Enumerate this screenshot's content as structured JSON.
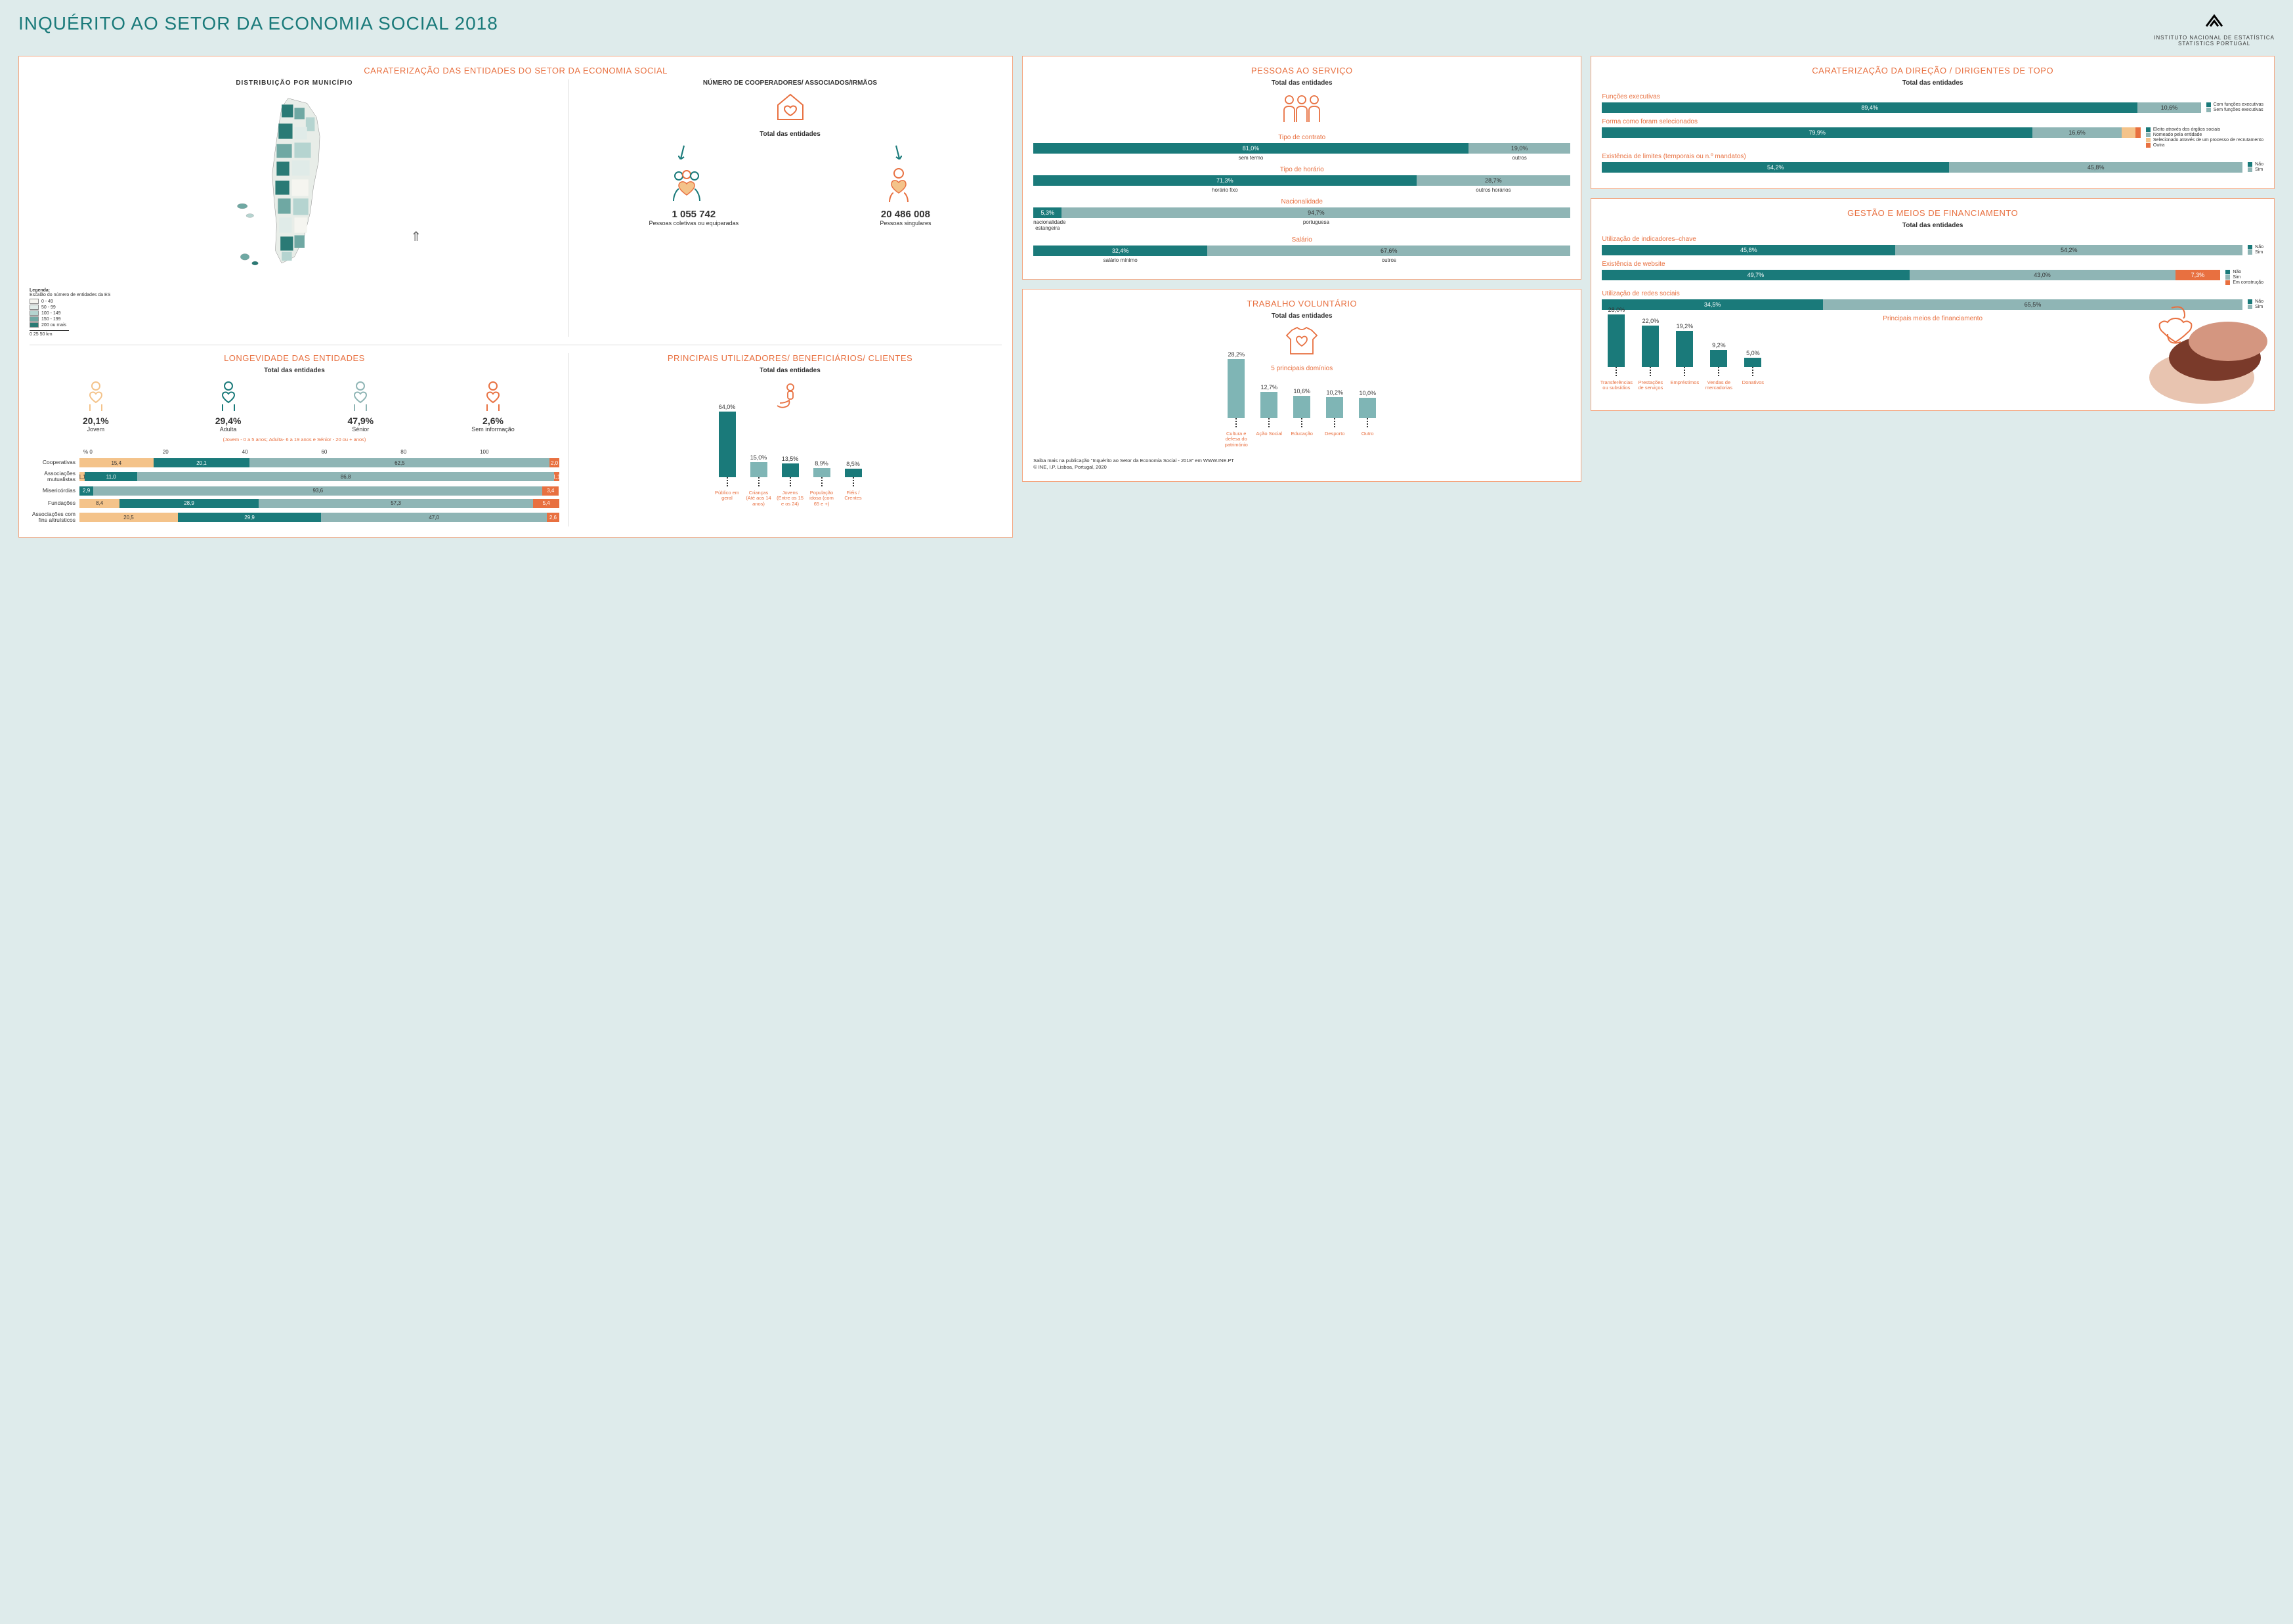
{
  "header": {
    "title": "INQUÉRITO AO SETOR DA ECONOMIA SOCIAL 2018",
    "org_line1": "INSTITUTO NACIONAL DE ESTATÍSTICA",
    "org_line2": "STATISTICS PORTUGAL"
  },
  "char": {
    "title": "CARATERIZAÇÃO DAS ENTIDADES DO SETOR DA ECONOMIA SOCIAL",
    "map_title": "DISTRIBUIÇÃO POR MUNICÍPIO",
    "legend_title": "Legenda:",
    "legend_sub": "Escalão do número de entidades da ES",
    "legend": [
      {
        "label": "0 - 49",
        "color": "#f5f5f0"
      },
      {
        "label": "50 - 99",
        "color": "#e0ebe8"
      },
      {
        "label": "100 - 149",
        "color": "#b5d4d0"
      },
      {
        "label": "150 - 199",
        "color": "#6fa8a3"
      },
      {
        "label": "200 ou mais",
        "color": "#2a7a75"
      }
    ],
    "scale": "0    25    50 km",
    "coop_title": "NÚMERO DE COOPERADORES/ ASSOCIADOS/IRMÃOS",
    "coop_sub": "Total das entidades",
    "coop": [
      {
        "num": "1 055 742",
        "label": "Pessoas coletivas ou equiparadas"
      },
      {
        "num": "20 486 008",
        "label": "Pessoas singulares"
      }
    ]
  },
  "long": {
    "title": "LONGEVIDADE DAS ENTIDADES",
    "sub": "Total das entidades",
    "items": [
      {
        "pct": "20,1%",
        "label": "Jovem",
        "color": "#f4c38a"
      },
      {
        "pct": "29,4%",
        "label": "Adulta",
        "color": "#1a7a7a"
      },
      {
        "pct": "47,9%",
        "label": "Sénior",
        "color": "#8fb5b5"
      },
      {
        "pct": "2,6%",
        "label": "Sem informação",
        "color": "#e87040"
      }
    ],
    "note": "(Jovem - 0 a 5 anos; Adulta- 6 a 19 anos e Sénior - 20 ou + anos)",
    "axis": [
      "% 0",
      "20",
      "40",
      "60",
      "80",
      "100"
    ],
    "rows": [
      {
        "label": "Cooperativas",
        "segs": [
          {
            "v": "15,4",
            "w": 15.4,
            "c": "#f4c38a",
            "dark": true
          },
          {
            "v": "20,1",
            "w": 20.1,
            "c": "#1a7a7a"
          },
          {
            "v": "62,5",
            "w": 62.5,
            "c": "#8fb5b5",
            "dark": true
          },
          {
            "v": "2,0",
            "w": 2.0,
            "c": "#e87040"
          }
        ]
      },
      {
        "label": "Associações mutualistas",
        "segs": [
          {
            "v": "1,1",
            "w": 1.1,
            "c": "#f4c38a",
            "dark": true
          },
          {
            "v": "11,0",
            "w": 11.0,
            "c": "#1a7a7a"
          },
          {
            "v": "86,8",
            "w": 86.8,
            "c": "#8fb5b5",
            "dark": true
          },
          {
            "v": "1,1",
            "w": 1.1,
            "c": "#e87040"
          }
        ]
      },
      {
        "label": "Misericórdias",
        "segs": [
          {
            "v": "2,9",
            "w": 2.9,
            "c": "#1a7a7a"
          },
          {
            "v": "93,6",
            "w": 93.6,
            "c": "#8fb5b5",
            "dark": true
          },
          {
            "v": "3,4",
            "w": 3.4,
            "c": "#e87040"
          }
        ]
      },
      {
        "label": "Fundações",
        "segs": [
          {
            "v": "8,4",
            "w": 8.4,
            "c": "#f4c38a",
            "dark": true
          },
          {
            "v": "28,9",
            "w": 28.9,
            "c": "#1a7a7a"
          },
          {
            "v": "57,3",
            "w": 57.3,
            "c": "#8fb5b5",
            "dark": true
          },
          {
            "v": "5,4",
            "w": 5.4,
            "c": "#e87040"
          }
        ]
      },
      {
        "label": "Associações com fins altruísticos",
        "segs": [
          {
            "v": "20,5",
            "w": 20.5,
            "c": "#f4c38a",
            "dark": true
          },
          {
            "v": "29,9",
            "w": 29.9,
            "c": "#1a7a7a"
          },
          {
            "v": "47,0",
            "w": 47.0,
            "c": "#8fb5b5",
            "dark": true
          },
          {
            "v": "2,6",
            "w": 2.6,
            "c": "#e87040"
          }
        ]
      }
    ]
  },
  "users": {
    "title": "PRINCIPAIS UTILIZADORES/ BENEFICIÁRIOS/ CLIENTES",
    "sub": "Total das entidades",
    "bars": [
      {
        "v": "64,0%",
        "h": 100,
        "c": "#1a7a7a",
        "label": "Público em geral"
      },
      {
        "v": "15,0%",
        "h": 23,
        "c": "#7fb5b5",
        "label": "Crianças (Até aos 14 anos)"
      },
      {
        "v": "13,5%",
        "h": 21,
        "c": "#1a7a7a",
        "label": "Jovens (Entre os 15 e os 24)"
      },
      {
        "v": "8,9%",
        "h": 14,
        "c": "#7fb5b5",
        "label": "População idosa (com 65 e +)"
      },
      {
        "v": "8,5%",
        "h": 13,
        "c": "#1a7a7a",
        "label": "Fiéis / Crentes"
      }
    ]
  },
  "people": {
    "title": "PESSOAS AO SERVIÇO",
    "sub": "Total das entidades",
    "sections": [
      {
        "label": "Tipo de contrato",
        "segs": [
          {
            "v": "81,0%",
            "w": 81,
            "c": "#1a7a7a",
            "l": "sem termo"
          },
          {
            "v": "19,0%",
            "w": 19,
            "c": "#8fb5b5",
            "l": "outros",
            "dark": true
          }
        ]
      },
      {
        "label": "Tipo de horário",
        "segs": [
          {
            "v": "71,3%",
            "w": 71.3,
            "c": "#1a7a7a",
            "l": "horário fixo"
          },
          {
            "v": "28,7%",
            "w": 28.7,
            "c": "#8fb5b5",
            "l": "outros horários",
            "dark": true
          }
        ]
      },
      {
        "label": "Nacionalidade",
        "segs": [
          {
            "v": "5,3%",
            "w": 5.3,
            "c": "#1a7a7a",
            "l": "nacionalidade estangeira"
          },
          {
            "v": "94,7%",
            "w": 94.7,
            "c": "#8fb5b5",
            "l": "portuguesa",
            "dark": true
          }
        ]
      },
      {
        "label": "Salário",
        "segs": [
          {
            "v": "32,4%",
            "w": 32.4,
            "c": "#1a7a7a",
            "l": "salário mínimo"
          },
          {
            "v": "67,6%",
            "w": 67.6,
            "c": "#8fb5b5",
            "l": "outros",
            "dark": true
          }
        ]
      }
    ]
  },
  "vol": {
    "title": "TRABALHO VOLUNTÁRIO",
    "sub": "Total das entidades",
    "domains_label": "5 principais domínios",
    "bars": [
      {
        "v": "28,2%",
        "h": 100,
        "label": "Cultura e defesa do património"
      },
      {
        "v": "12,7%",
        "h": 45,
        "label": "Ação Social"
      },
      {
        "v": "10,6%",
        "h": 38,
        "label": "Educação"
      },
      {
        "v": "10,2%",
        "h": 36,
        "label": "Desporto"
      },
      {
        "v": "10,0%",
        "h": 35,
        "label": "Outro"
      }
    ],
    "footnote1": "Saiba mais na publicação \"Inquérito ao Setor da Economia Social - 2018\" em WWW.INE.PT",
    "footnote2": "© INE, I.P. Lisboa, Portugal, 2020"
  },
  "dir": {
    "title": "CARATERIZAÇÃO DA DIREÇÃO / DIRIGENTES DE TOPO",
    "sub": "Total das entidades",
    "rows": [
      {
        "label": "Funções executivas",
        "segs": [
          {
            "v": "89,4%",
            "w": 89.4,
            "c": "#1a7a7a"
          },
          {
            "v": "10,6%",
            "w": 10.6,
            "c": "#8fb5b5",
            "dark": true
          }
        ],
        "legend": [
          {
            "c": "#1a7a7a",
            "t": "Com funções executivas"
          },
          {
            "c": "#8fb5b5",
            "t": "Sem funções executivas"
          }
        ]
      },
      {
        "label": "Forma como foram selecionados",
        "segs": [
          {
            "v": "79,9%",
            "w": 79.9,
            "c": "#1a7a7a"
          },
          {
            "v": "16,6%",
            "w": 16.6,
            "c": "#8fb5b5",
            "dark": true
          },
          {
            "v": "",
            "w": 2.5,
            "c": "#f4c38a"
          },
          {
            "v": "",
            "w": 1.0,
            "c": "#e87040"
          }
        ],
        "legend": [
          {
            "c": "#1a7a7a",
            "t": "Eleito através dos órgãos sociais"
          },
          {
            "c": "#8fb5b5",
            "t": "Nomeado pela entidade"
          },
          {
            "c": "#f4c38a",
            "t": "Selecionado através de um processo de recrutamento"
          },
          {
            "c": "#e87040",
            "t": "Outra"
          }
        ]
      },
      {
        "label": "Existência de limites (temporais ou n.º mandatos)",
        "segs": [
          {
            "v": "54,2%",
            "w": 54.2,
            "c": "#1a7a7a"
          },
          {
            "v": "45,8%",
            "w": 45.8,
            "c": "#8fb5b5",
            "dark": true
          }
        ],
        "legend": [
          {
            "c": "#1a7a7a",
            "t": "Não"
          },
          {
            "c": "#8fb5b5",
            "t": "Sim"
          }
        ]
      }
    ]
  },
  "mgmt": {
    "title": "GESTÃO E MEIOS DE FINANCIAMENTO",
    "sub": "Total das entidades",
    "rows": [
      {
        "label": "Utilização de indicadores–chave",
        "segs": [
          {
            "v": "45,8%",
            "w": 45.8,
            "c": "#1a7a7a"
          },
          {
            "v": "54,2%",
            "w": 54.2,
            "c": "#8fb5b5",
            "dark": true
          }
        ],
        "legend": [
          {
            "c": "#1a7a7a",
            "t": "Não"
          },
          {
            "c": "#8fb5b5",
            "t": "Sim"
          }
        ]
      },
      {
        "label": "Existência de website",
        "segs": [
          {
            "v": "49,7%",
            "w": 49.7,
            "c": "#1a7a7a"
          },
          {
            "v": "43,0%",
            "w": 43.0,
            "c": "#8fb5b5",
            "dark": true
          },
          {
            "v": "7,3%",
            "w": 7.3,
            "c": "#e87040"
          }
        ],
        "legend": [
          {
            "c": "#1a7a7a",
            "t": "Não"
          },
          {
            "c": "#8fb5b5",
            "t": "Sim"
          },
          {
            "c": "#e87040",
            "t": "Em construção"
          }
        ]
      },
      {
        "label": "Utilização de redes sociais",
        "segs": [
          {
            "v": "34,5%",
            "w": 34.5,
            "c": "#1a7a7a"
          },
          {
            "v": "65,5%",
            "w": 65.5,
            "c": "#8fb5b5",
            "dark": true
          }
        ],
        "legend": [
          {
            "c": "#1a7a7a",
            "t": "Não"
          },
          {
            "c": "#8fb5b5",
            "t": "Sim"
          }
        ]
      }
    ],
    "fin_label": "Principais meios de financiamento",
    "fin_bars": [
      {
        "v": "28,0%",
        "h": 100,
        "label": "Transferências ou subsídios"
      },
      {
        "v": "22,0%",
        "h": 79,
        "label": "Prestações de serviços"
      },
      {
        "v": "19,2%",
        "h": 69,
        "label": "Empréstimos"
      },
      {
        "v": "9,2%",
        "h": 33,
        "label": "Vendas de mercadorias"
      },
      {
        "v": "5,0%",
        "h": 18,
        "label": "Donativos"
      }
    ]
  },
  "colors": {
    "teal": "#1a7a7a",
    "ltteal": "#8fb5b5",
    "orange": "#e87040",
    "peach": "#f4c38a"
  }
}
